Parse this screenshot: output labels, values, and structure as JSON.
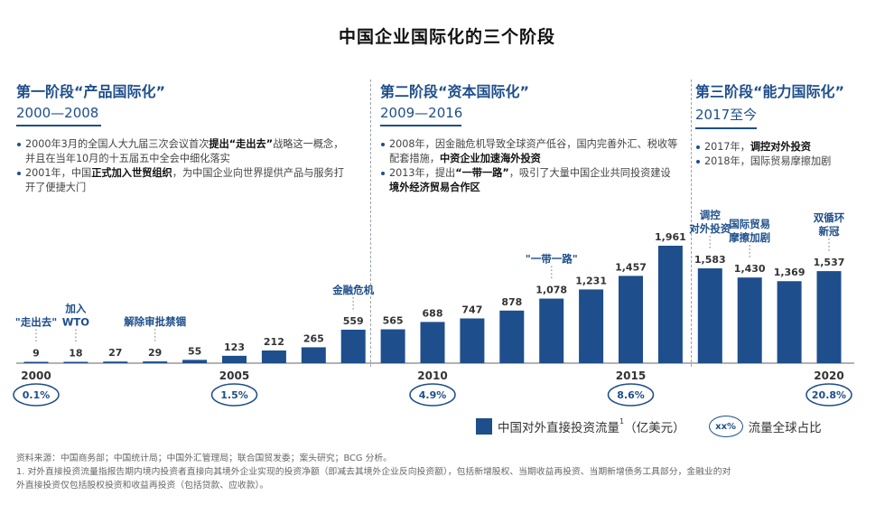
{
  "title": "中国企业国际化的三个阶段",
  "phases": [
    {
      "title": "第一阶段“产品国际化”",
      "years": "2000—2008",
      "bullets": [
        {
          "pre": "2000年3月的全国人大九届三次会议首次",
          "bold": "提出“走出去”",
          "post": "战略这一概念，并且在当年10月的十五届五中全会中细化落实"
        },
        {
          "pre": "2001年，中国",
          "bold": "正式加入世贸组织",
          "post": "，为中国企业向世界提供产品与服务打开了便捷大门"
        }
      ]
    },
    {
      "title": "第二阶段“资本国际化”",
      "years": "2009—2016",
      "bullets": [
        {
          "pre": "2008年，因金融危机导致全球资产低谷，国内完善外汇、税收等配套措施，",
          "bold": "中资企业加速海外投资",
          "post": ""
        },
        {
          "pre": "2013年，提出",
          "bold": "“一带一路”",
          "post": "，吸引了大量中国企业共同投资建设",
          "bold2": "境外经济贸易合作区"
        }
      ]
    },
    {
      "title": "第三阶段“能力国际化”",
      "years": "2017至今",
      "bullets": [
        {
          "pre": "2017年，",
          "bold": "调控对外投资",
          "post": ""
        },
        {
          "pre": "2018年，国际贸易摩擦加剧",
          "bold": "",
          "post": ""
        }
      ]
    }
  ],
  "chart_data": {
    "type": "bar",
    "x": [
      2000,
      2001,
      2002,
      2003,
      2004,
      2005,
      2006,
      2007,
      2008,
      2009,
      2010,
      2011,
      2012,
      2013,
      2014,
      2015,
      2016,
      2017,
      2018,
      2019,
      2020
    ],
    "values": [
      9,
      18,
      27,
      29,
      55,
      123,
      212,
      265,
      559,
      565,
      688,
      747,
      878,
      1078,
      1231,
      1457,
      1961,
      1583,
      1430,
      1369,
      1537
    ],
    "value_labels": [
      "9",
      "18",
      "27",
      "29",
      "55",
      "123",
      "212",
      "265",
      "559",
      "565",
      "688",
      "747",
      "878",
      "1,078",
      "1,231",
      "1,457",
      "1,961",
      "1,583",
      "1,430",
      "1,369",
      "1,537"
    ],
    "x_tick_labels": [
      {
        "year": 2000,
        "label": "2000"
      },
      {
        "year": 2005,
        "label": "2005"
      },
      {
        "year": 2010,
        "label": "2010"
      },
      {
        "year": 2015,
        "label": "2015"
      },
      {
        "year": 2020,
        "label": "2020"
      }
    ],
    "global_share": [
      {
        "year": 2000,
        "label": "0.1%"
      },
      {
        "year": 2005,
        "label": "1.5%"
      },
      {
        "year": 2010,
        "label": "4.9%"
      },
      {
        "year": 2015,
        "label": "8.6%"
      },
      {
        "year": 2020,
        "label": "20.8%"
      }
    ],
    "annotations": [
      {
        "year": 2000,
        "lines": [
          "\"走出去\""
        ]
      },
      {
        "year": 2001,
        "lines": [
          "加入",
          "WTO"
        ]
      },
      {
        "year": 2003,
        "lines": [
          "解除审批禁锢"
        ]
      },
      {
        "year": 2008,
        "lines": [
          "金融危机"
        ]
      },
      {
        "year": 2013,
        "lines": [
          "\"一带一路\""
        ]
      },
      {
        "year": 2017,
        "lines": [
          "调控",
          "对外投资"
        ]
      },
      {
        "year": 2018,
        "lines": [
          "国际贸易",
          "摩擦加剧"
        ]
      },
      {
        "year": 2020,
        "lines": [
          "双循环",
          "新冠"
        ]
      }
    ],
    "legend": {
      "series": "中国对外直接投资流量",
      "series_sup": "1",
      "unit": "（亿美元）",
      "badge": "xx%",
      "share_label": "流量全球占比"
    },
    "colors": {
      "bar": "#1e4e8c",
      "annotation": "#1e4e8c",
      "axis": "#666666"
    }
  },
  "footnotes": [
    "资料来源：中国商务部；中国统计局；中国外汇管理局；联合国贸发委；案头研究；BCG 分析。",
    "1. 对外直接投资流量指报告期内境内投资者直接向其境外企业实现的投资净额（即减去其境外企业反向投资额），包括新增股权、当期收益再投资、当期新增债务工具部分，金融业的对",
    "外直接投资仅包括股权投资和收益再投资（包括贷款、应收款）。"
  ]
}
